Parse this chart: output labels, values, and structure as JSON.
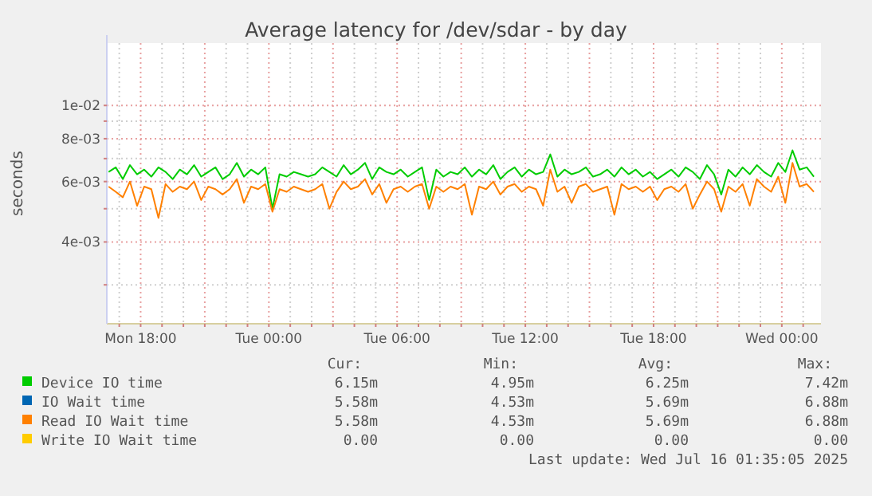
{
  "chart_data": {
    "type": "line",
    "title": "Average latency for /dev/sdar - by day",
    "ylabel": "seconds",
    "log": true,
    "grid": true,
    "legend": "bottom",
    "line_style": "solid",
    "xlim": [
      "2025-07-14T16:25",
      "2025-07-16T01:50"
    ],
    "xticks": [
      {
        "value": "2025-07-14T17:00",
        "label": null
      },
      {
        "value": "2025-07-14T18:00",
        "label": "Mon 18:00"
      },
      {
        "value": "2025-07-14T19:00",
        "label": null
      },
      {
        "value": "2025-07-14T20:00",
        "label": null
      },
      {
        "value": "2025-07-14T21:00",
        "label": null
      },
      {
        "value": "2025-07-14T22:00",
        "label": null
      },
      {
        "value": "2025-07-14T23:00",
        "label": null
      },
      {
        "value": "2025-07-15T00:00",
        "label": "Tue 00:00"
      },
      {
        "value": "2025-07-15T01:00",
        "label": null
      },
      {
        "value": "2025-07-15T02:00",
        "label": null
      },
      {
        "value": "2025-07-15T03:00",
        "label": null
      },
      {
        "value": "2025-07-15T04:00",
        "label": null
      },
      {
        "value": "2025-07-15T05:00",
        "label": null
      },
      {
        "value": "2025-07-15T06:00",
        "label": "Tue 06:00"
      },
      {
        "value": "2025-07-15T07:00",
        "label": null
      },
      {
        "value": "2025-07-15T08:00",
        "label": null
      },
      {
        "value": "2025-07-15T09:00",
        "label": null
      },
      {
        "value": "2025-07-15T10:00",
        "label": null
      },
      {
        "value": "2025-07-15T11:00",
        "label": null
      },
      {
        "value": "2025-07-15T12:00",
        "label": "Tue 12:00"
      },
      {
        "value": "2025-07-15T13:00",
        "label": null
      },
      {
        "value": "2025-07-15T14:00",
        "label": null
      },
      {
        "value": "2025-07-15T15:00",
        "label": null
      },
      {
        "value": "2025-07-15T16:00",
        "label": null
      },
      {
        "value": "2025-07-15T17:00",
        "label": null
      },
      {
        "value": "2025-07-15T18:00",
        "label": "Tue 18:00"
      },
      {
        "value": "2025-07-15T19:00",
        "label": null
      },
      {
        "value": "2025-07-15T20:00",
        "label": null
      },
      {
        "value": "2025-07-15T21:00",
        "label": null
      },
      {
        "value": "2025-07-15T22:00",
        "label": null
      },
      {
        "value": "2025-07-15T23:00",
        "label": null
      },
      {
        "value": "2025-07-16T00:00",
        "label": "Wed 00:00"
      },
      {
        "value": "2025-07-16T01:00",
        "label": null
      }
    ],
    "ylim": [
      0.00231,
      0.0152
    ],
    "yticks": [
      {
        "value": 0.003,
        "label": null
      },
      {
        "value": 0.004,
        "label": "4e-03"
      },
      {
        "value": 0.005,
        "label": null
      },
      {
        "value": 0.006,
        "label": "6e-03"
      },
      {
        "value": 0.007,
        "label": null
      },
      {
        "value": 0.008,
        "label": "8e-03"
      },
      {
        "value": 0.009,
        "label": null
      },
      {
        "value": 0.01,
        "label": "1e-02"
      }
    ],
    "x": [
      "2025-07-14T16:30",
      "2025-07-14T16:50",
      "2025-07-14T17:10",
      "2025-07-14T17:30",
      "2025-07-14T17:50",
      "2025-07-14T18:10",
      "2025-07-14T18:30",
      "2025-07-14T18:50",
      "2025-07-14T19:10",
      "2025-07-14T19:30",
      "2025-07-14T19:50",
      "2025-07-14T20:10",
      "2025-07-14T20:30",
      "2025-07-14T20:50",
      "2025-07-14T21:10",
      "2025-07-14T21:30",
      "2025-07-14T21:50",
      "2025-07-14T22:10",
      "2025-07-14T22:30",
      "2025-07-14T22:50",
      "2025-07-14T23:10",
      "2025-07-14T23:30",
      "2025-07-14T23:50",
      "2025-07-15T00:10",
      "2025-07-15T00:30",
      "2025-07-15T00:50",
      "2025-07-15T01:10",
      "2025-07-15T01:30",
      "2025-07-15T01:50",
      "2025-07-15T02:10",
      "2025-07-15T02:30",
      "2025-07-15T02:50",
      "2025-07-15T03:10",
      "2025-07-15T03:30",
      "2025-07-15T03:50",
      "2025-07-15T04:10",
      "2025-07-15T04:30",
      "2025-07-15T04:50",
      "2025-07-15T05:10",
      "2025-07-15T05:30",
      "2025-07-15T05:50",
      "2025-07-15T06:10",
      "2025-07-15T06:30",
      "2025-07-15T06:50",
      "2025-07-15T07:10",
      "2025-07-15T07:30",
      "2025-07-15T07:50",
      "2025-07-15T08:10",
      "2025-07-15T08:30",
      "2025-07-15T08:50",
      "2025-07-15T09:10",
      "2025-07-15T09:30",
      "2025-07-15T09:50",
      "2025-07-15T10:10",
      "2025-07-15T10:30",
      "2025-07-15T10:50",
      "2025-07-15T11:10",
      "2025-07-15T11:30",
      "2025-07-15T11:50",
      "2025-07-15T12:10",
      "2025-07-15T12:30",
      "2025-07-15T12:50",
      "2025-07-15T13:10",
      "2025-07-15T13:30",
      "2025-07-15T13:50",
      "2025-07-15T14:10",
      "2025-07-15T14:30",
      "2025-07-15T14:50",
      "2025-07-15T15:10",
      "2025-07-15T15:30",
      "2025-07-15T15:50",
      "2025-07-15T16:10",
      "2025-07-15T16:30",
      "2025-07-15T16:50",
      "2025-07-15T17:10",
      "2025-07-15T17:30",
      "2025-07-15T17:50",
      "2025-07-15T18:10",
      "2025-07-15T18:30",
      "2025-07-15T18:50",
      "2025-07-15T19:10",
      "2025-07-15T19:30",
      "2025-07-15T19:50",
      "2025-07-15T20:10",
      "2025-07-15T20:30",
      "2025-07-15T20:50",
      "2025-07-15T21:10",
      "2025-07-15T21:30",
      "2025-07-15T21:50",
      "2025-07-15T22:10",
      "2025-07-15T22:30",
      "2025-07-15T22:50",
      "2025-07-15T23:10",
      "2025-07-15T23:30",
      "2025-07-15T23:50",
      "2025-07-16T00:10",
      "2025-07-16T00:30",
      "2025-07-16T00:50",
      "2025-07-16T01:10",
      "2025-07-16T01:30"
    ],
    "series": [
      {
        "name": "Device IO time",
        "color": "#00cc00",
        "values": [
          0.0064,
          0.0066,
          0.0061,
          0.0067,
          0.0063,
          0.0065,
          0.0062,
          0.0066,
          0.0064,
          0.0061,
          0.0065,
          0.0063,
          0.0067,
          0.0062,
          0.0064,
          0.0066,
          0.0061,
          0.0063,
          0.0068,
          0.0062,
          0.0065,
          0.0063,
          0.0066,
          0.005,
          0.0063,
          0.0062,
          0.0064,
          0.0063,
          0.0062,
          0.0063,
          0.0066,
          0.0064,
          0.0062,
          0.0067,
          0.0063,
          0.0065,
          0.0068,
          0.0061,
          0.0066,
          0.0064,
          0.0063,
          0.0065,
          0.0062,
          0.0064,
          0.0066,
          0.0053,
          0.0065,
          0.0062,
          0.0064,
          0.0063,
          0.0066,
          0.0062,
          0.0065,
          0.0063,
          0.0067,
          0.0061,
          0.0064,
          0.0066,
          0.0062,
          0.0065,
          0.0063,
          0.0064,
          0.0072,
          0.0062,
          0.0065,
          0.0063,
          0.0064,
          0.0066,
          0.0062,
          0.0063,
          0.0065,
          0.0062,
          0.0066,
          0.0063,
          0.0065,
          0.0062,
          0.0064,
          0.0061,
          0.0063,
          0.0065,
          0.0062,
          0.0066,
          0.0064,
          0.0061,
          0.0067,
          0.0063,
          0.0055,
          0.0065,
          0.0062,
          0.0066,
          0.0063,
          0.0067,
          0.0064,
          0.0062,
          0.0068,
          0.0064,
          0.0074,
          0.0065,
          0.0066,
          0.0062
        ]
      },
      {
        "name": "IO Wait time",
        "color": "#0066b3",
        "values": [
          null,
          null,
          null,
          null,
          null,
          null,
          null,
          null,
          null,
          null,
          null,
          null,
          null,
          null,
          null,
          null,
          null,
          null,
          null,
          null,
          null,
          null,
          null,
          null,
          null,
          null,
          null,
          null,
          null,
          null,
          null,
          null,
          null,
          null,
          null,
          null,
          null,
          null,
          null,
          null,
          null,
          null,
          null,
          null,
          null,
          null,
          null,
          null,
          null,
          null,
          null,
          null,
          null,
          null,
          null,
          null,
          null,
          null,
          null,
          null,
          null,
          null,
          null,
          null,
          null,
          null,
          null,
          null,
          null,
          null,
          null,
          null,
          null,
          null,
          null,
          null,
          null,
          null,
          null,
          null,
          null,
          null,
          null,
          null,
          null,
          null,
          null,
          null,
          null,
          null,
          null,
          null,
          null,
          null,
          null,
          null,
          null,
          null,
          null,
          null
        ]
      },
      {
        "name": "Read IO Wait time",
        "color": "#ff8000",
        "values": [
          0.0058,
          0.0056,
          0.0054,
          0.006,
          0.0051,
          0.0058,
          0.0057,
          0.0047,
          0.0059,
          0.0056,
          0.0058,
          0.0057,
          0.006,
          0.0053,
          0.0058,
          0.0057,
          0.0055,
          0.0057,
          0.0061,
          0.0052,
          0.0058,
          0.0057,
          0.0059,
          0.0049,
          0.0057,
          0.0056,
          0.0058,
          0.0057,
          0.0056,
          0.0057,
          0.0059,
          0.005,
          0.0056,
          0.006,
          0.0057,
          0.0058,
          0.0061,
          0.0055,
          0.0059,
          0.0052,
          0.0057,
          0.0058,
          0.0056,
          0.0058,
          0.0059,
          0.005,
          0.0058,
          0.0056,
          0.0058,
          0.0057,
          0.0059,
          0.0048,
          0.0058,
          0.0057,
          0.006,
          0.0055,
          0.0058,
          0.0059,
          0.0056,
          0.0058,
          0.0057,
          0.0051,
          0.0065,
          0.0056,
          0.0058,
          0.0052,
          0.0058,
          0.0059,
          0.0056,
          0.0057,
          0.0058,
          0.0048,
          0.0059,
          0.0057,
          0.0058,
          0.0056,
          0.0058,
          0.0053,
          0.0057,
          0.0058,
          0.0056,
          0.0059,
          0.005,
          0.0055,
          0.006,
          0.0057,
          0.0049,
          0.0058,
          0.0056,
          0.0059,
          0.0051,
          0.0061,
          0.0058,
          0.0056,
          0.0062,
          0.0052,
          0.0068,
          0.0058,
          0.0059,
          0.0056
        ]
      },
      {
        "name": "Write IO Wait time",
        "color": "#ffcc00",
        "values": [
          null,
          null,
          null,
          null,
          null,
          null,
          null,
          null,
          null,
          null,
          null,
          null,
          null,
          null,
          null,
          null,
          null,
          null,
          null,
          null,
          null,
          null,
          null,
          null,
          null,
          null,
          null,
          null,
          null,
          null,
          null,
          null,
          null,
          null,
          null,
          null,
          null,
          null,
          null,
          null,
          null,
          null,
          null,
          null,
          null,
          null,
          null,
          null,
          null,
          null,
          null,
          null,
          null,
          null,
          null,
          null,
          null,
          null,
          null,
          null,
          null,
          null,
          null,
          null,
          null,
          null,
          null,
          null,
          null,
          null,
          null,
          null,
          null,
          null,
          null,
          null,
          null,
          null,
          null,
          null,
          null,
          null,
          null,
          null,
          null,
          null,
          null,
          null,
          null,
          null,
          null,
          null,
          null,
          null,
          null,
          null,
          null,
          null,
          null,
          null
        ]
      }
    ],
    "annotations": [
      "Cur:",
      "Min:",
      "Avg:",
      "Max:",
      "6.15m",
      "4.95m",
      "6.25m",
      "7.42m",
      "5.58m",
      "4.53m",
      "5.69m",
      "6.88m",
      "5.58m",
      "4.53m",
      "5.69m",
      "6.88m",
      "0.00",
      "0.00",
      "0.00",
      "0.00",
      "Last update: Wed Jul 16 01:35:05 2025"
    ]
  }
}
